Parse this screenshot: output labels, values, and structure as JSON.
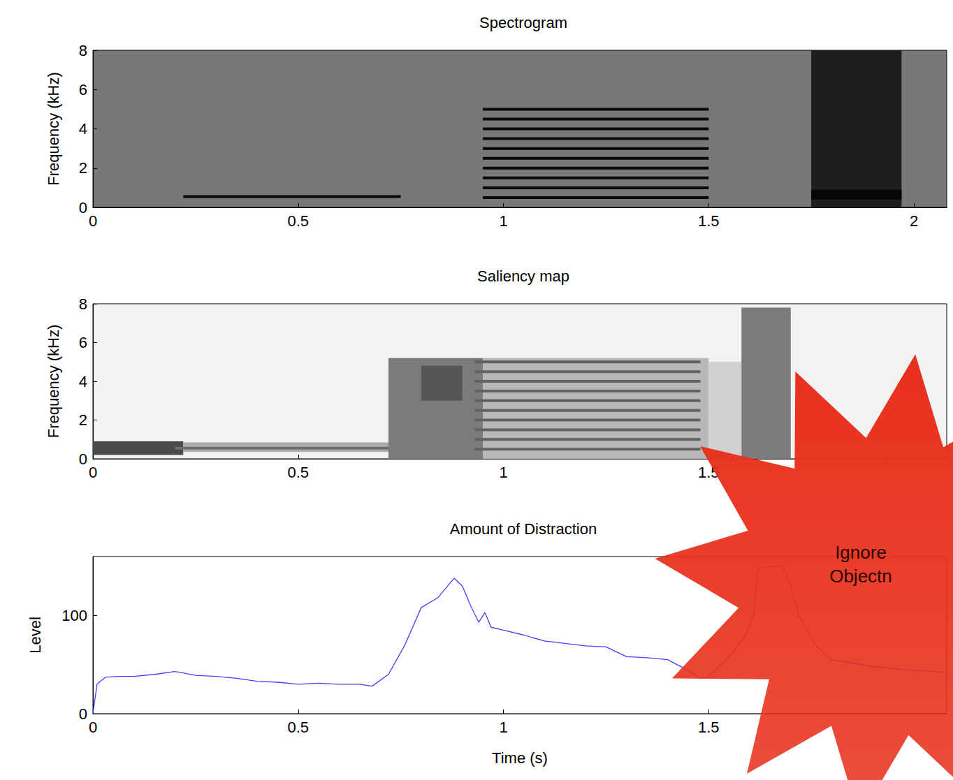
{
  "chart_data": [
    {
      "type": "spectrogram",
      "title": "Spectrogram",
      "y_label": "Frequency (kHz)",
      "xlim": [
        0,
        2.08
      ],
      "xticks": [
        0,
        0.5,
        1,
        1.5,
        2
      ],
      "ylim": [
        0,
        8
      ],
      "yticks": [
        0,
        2,
        4,
        6,
        8
      ],
      "regions": [
        {
          "x": [
            1.75,
            1.97
          ],
          "y": [
            0,
            8
          ],
          "level": 0.75
        },
        {
          "x": [
            1.75,
            1.97
          ],
          "y": [
            0.4,
            0.9
          ],
          "level": 0.95
        }
      ],
      "segments": [
        {
          "x": [
            0.22,
            0.75
          ],
          "y": 0.55,
          "level": 0.92
        },
        {
          "x": [
            0.95,
            1.5
          ],
          "y": 0.5,
          "level": 0.92
        },
        {
          "x": [
            0.95,
            1.5
          ],
          "y": 1.0,
          "level": 0.92
        },
        {
          "x": [
            0.95,
            1.5
          ],
          "y": 1.5,
          "level": 0.92
        },
        {
          "x": [
            0.95,
            1.5
          ],
          "y": 2.0,
          "level": 0.92
        },
        {
          "x": [
            0.95,
            1.5
          ],
          "y": 2.5,
          "level": 0.92
        },
        {
          "x": [
            0.95,
            1.5
          ],
          "y": 3.0,
          "level": 0.92
        },
        {
          "x": [
            0.95,
            1.5
          ],
          "y": 3.5,
          "level": 0.92
        },
        {
          "x": [
            0.95,
            1.5
          ],
          "y": 4.0,
          "level": 0.92
        },
        {
          "x": [
            0.95,
            1.5
          ],
          "y": 4.5,
          "level": 0.92
        },
        {
          "x": [
            0.95,
            1.5
          ],
          "y": 5.0,
          "level": 0.92
        }
      ]
    },
    {
      "type": "saliency",
      "title": "Saliency map",
      "y_label": "Frequency (kHz)",
      "xlim": [
        0,
        2.08
      ],
      "xticks": [
        0,
        0.5,
        1,
        1.5
      ],
      "ylim": [
        0,
        8
      ],
      "yticks": [
        0,
        2,
        4,
        6,
        8
      ],
      "regions": [
        {
          "x": [
            0,
            0.22
          ],
          "y": [
            0.2,
            0.9
          ],
          "level": 0.7
        },
        {
          "x": [
            0.22,
            0.72
          ],
          "y": [
            0.35,
            0.85
          ],
          "level": 0.3
        },
        {
          "x": [
            0.72,
            0.95
          ],
          "y": [
            0,
            5.2
          ],
          "level": 0.5
        },
        {
          "x": [
            0.8,
            0.9
          ],
          "y": [
            3,
            4.8
          ],
          "level": 0.65
        },
        {
          "x": [
            0.95,
            1.5
          ],
          "y": [
            0,
            5.2
          ],
          "level": 0.25
        },
        {
          "x": [
            1.5,
            1.58
          ],
          "y": [
            0,
            5
          ],
          "level": 0.15
        },
        {
          "x": [
            1.58,
            1.7
          ],
          "y": [
            0,
            7.8
          ],
          "level": 0.5
        }
      ],
      "segments": [
        {
          "x": [
            0.2,
            0.72
          ],
          "y": 0.55,
          "level": 0.55
        },
        {
          "x": [
            0.93,
            1.48
          ],
          "y": 0.5,
          "level": 0.6
        },
        {
          "x": [
            0.93,
            1.48
          ],
          "y": 1.0,
          "level": 0.6
        },
        {
          "x": [
            0.93,
            1.48
          ],
          "y": 1.5,
          "level": 0.6
        },
        {
          "x": [
            0.93,
            1.48
          ],
          "y": 2.0,
          "level": 0.6
        },
        {
          "x": [
            0.93,
            1.48
          ],
          "y": 2.5,
          "level": 0.6
        },
        {
          "x": [
            0.93,
            1.48
          ],
          "y": 3.0,
          "level": 0.6
        },
        {
          "x": [
            0.93,
            1.48
          ],
          "y": 3.5,
          "level": 0.6
        },
        {
          "x": [
            0.93,
            1.48
          ],
          "y": 4.0,
          "level": 0.6
        },
        {
          "x": [
            0.93,
            1.48
          ],
          "y": 4.5,
          "level": 0.6
        },
        {
          "x": [
            0.93,
            1.48
          ],
          "y": 5.0,
          "level": 0.6
        }
      ]
    },
    {
      "type": "line",
      "title": "Amount of Distraction",
      "x_label": "Time (s)",
      "y_label": "Level",
      "xlim": [
        0,
        2.08
      ],
      "xticks": [
        0,
        0.5,
        1,
        1.5
      ],
      "ylim": [
        0,
        160
      ],
      "yticks": [
        0,
        100
      ],
      "color": "#4040ff",
      "x": [
        0,
        0.01,
        0.03,
        0.06,
        0.1,
        0.15,
        0.2,
        0.25,
        0.3,
        0.35,
        0.4,
        0.45,
        0.5,
        0.55,
        0.6,
        0.65,
        0.68,
        0.72,
        0.76,
        0.8,
        0.84,
        0.88,
        0.9,
        0.92,
        0.94,
        0.955,
        0.97,
        1.0,
        1.05,
        1.1,
        1.2,
        1.25,
        1.3,
        1.35,
        1.4,
        1.45,
        1.48,
        1.5,
        1.53,
        1.56,
        1.59,
        1.61,
        1.62,
        1.65,
        1.68,
        1.7,
        1.72,
        1.76,
        1.8,
        1.9,
        2.0,
        2.08
      ],
      "values": [
        0,
        30,
        37,
        38,
        38,
        40,
        43,
        39,
        38,
        36,
        33,
        32,
        30,
        31,
        30,
        30,
        28,
        40,
        70,
        108,
        118,
        138,
        130,
        110,
        93,
        103,
        88,
        85,
        80,
        74,
        69,
        68,
        58,
        57,
        55,
        44,
        36,
        38,
        50,
        63,
        80,
        100,
        148,
        150,
        150,
        130,
        100,
        70,
        55,
        48,
        44,
        42
      ]
    }
  ],
  "callout": {
    "lines": [
      "Ignore",
      "Objectn"
    ],
    "color": "#e8301c"
  }
}
